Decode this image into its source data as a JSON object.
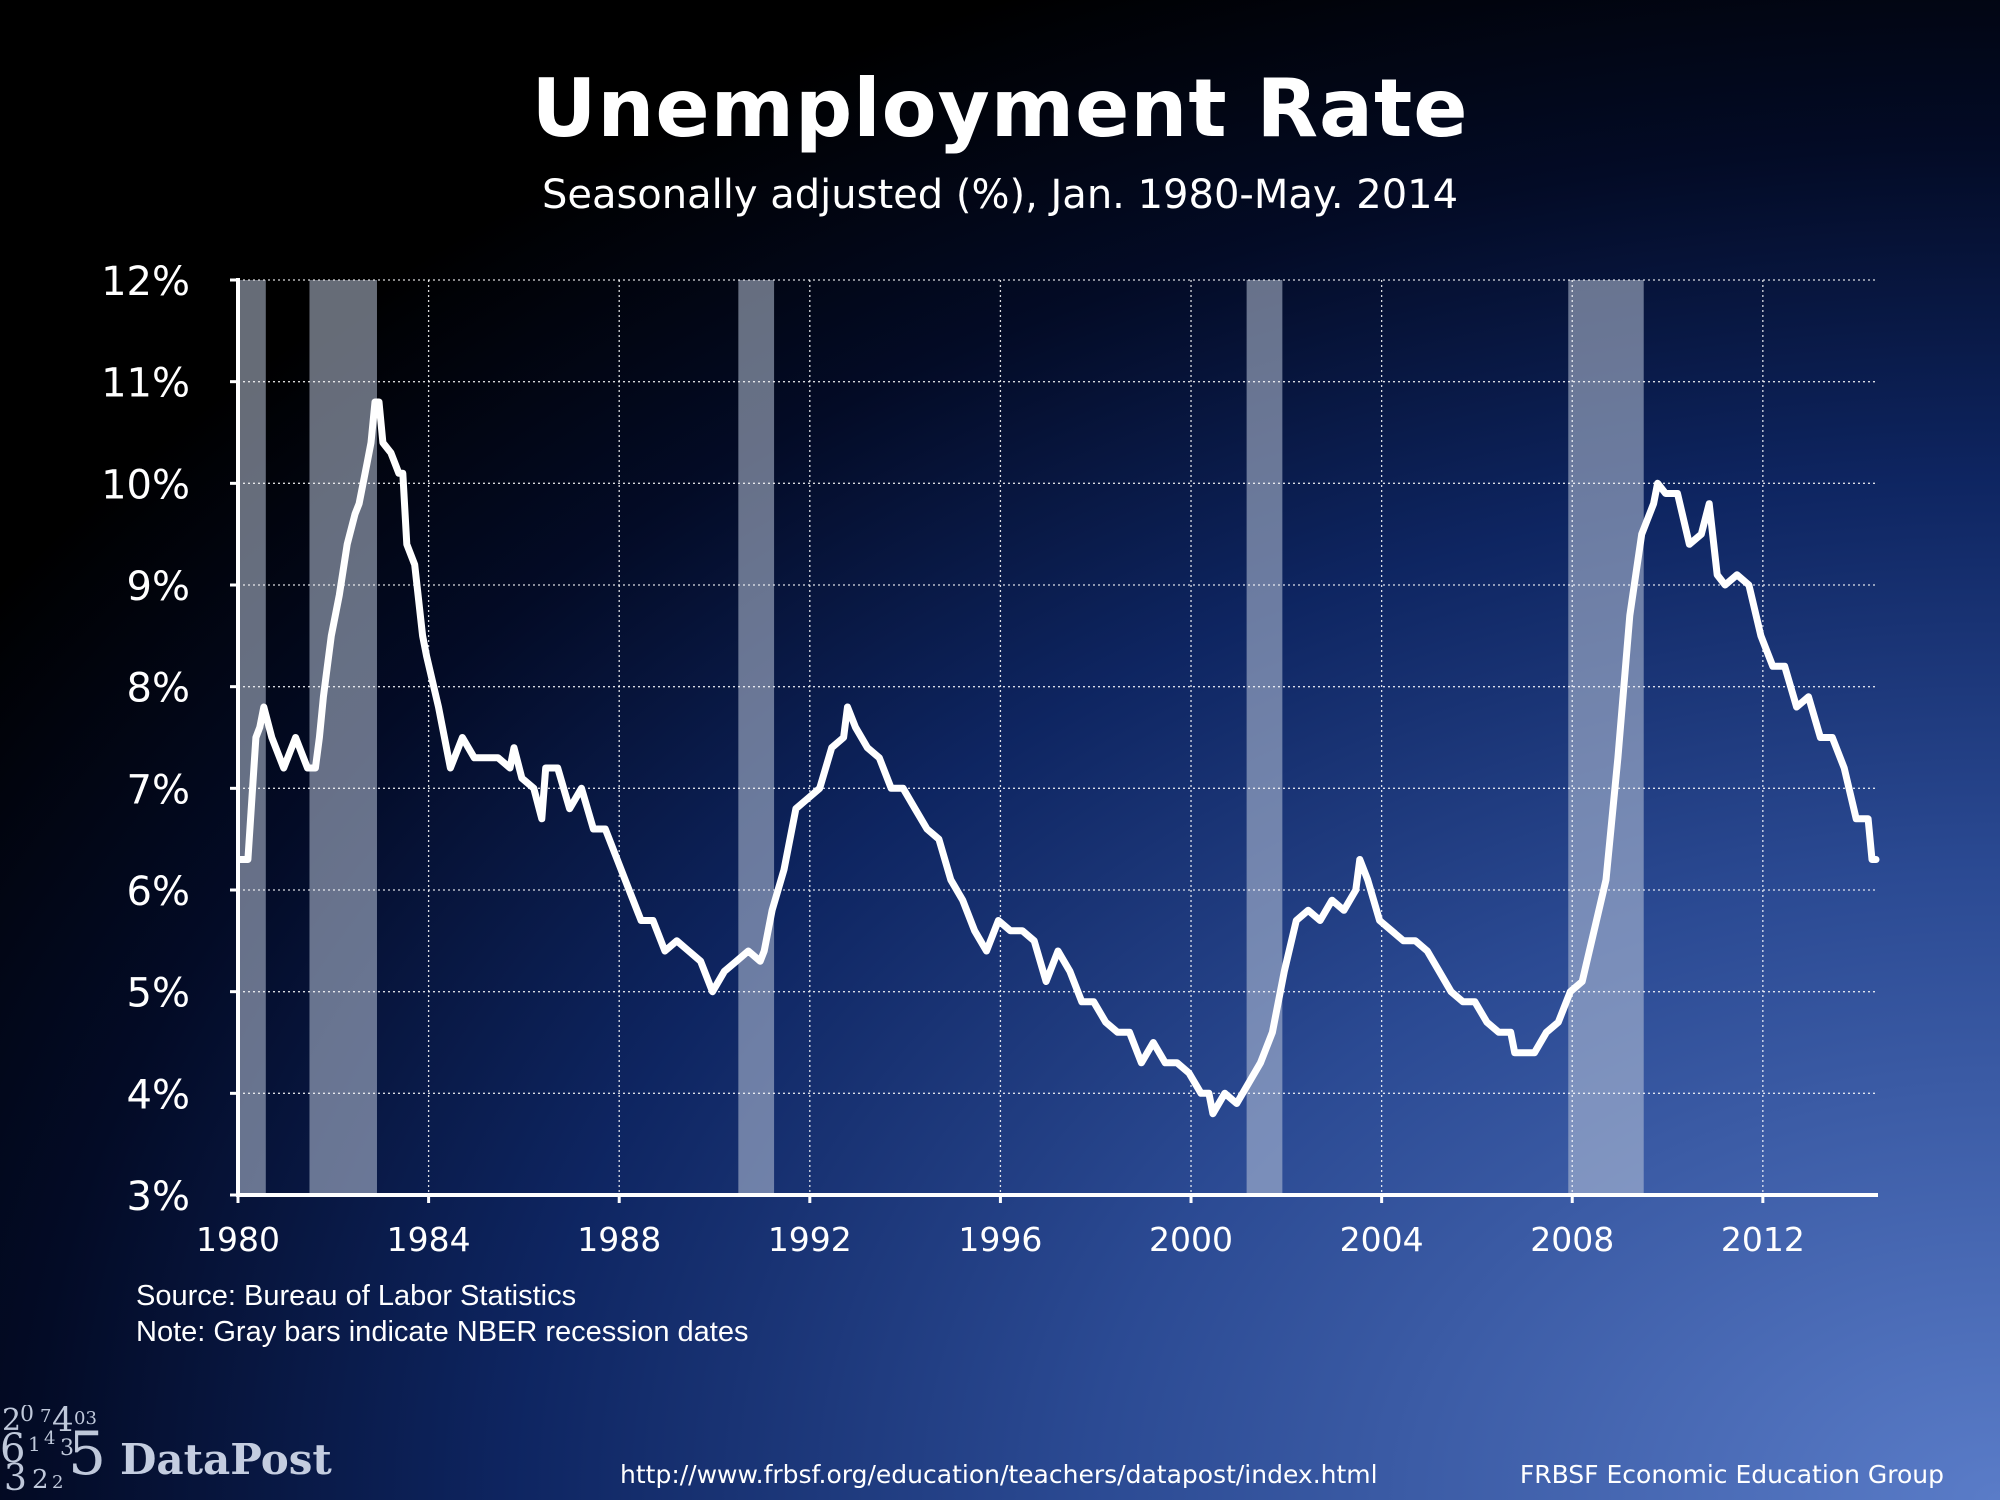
{
  "chart_data": {
    "type": "line",
    "title": "Unemployment Rate",
    "subtitle": "Seasonally adjusted (%), Jan. 1980-May. 2014",
    "y_ticks": [
      "3%",
      "4%",
      "5%",
      "6%",
      "7%",
      "8%",
      "9%",
      "10%",
      "11%",
      "12%"
    ],
    "x_ticks": [
      "1980",
      "1984",
      "1988",
      "1992",
      "1996",
      "2000",
      "2004",
      "2008",
      "2012"
    ],
    "xlim": [
      "1980-01",
      "2014-05"
    ],
    "ylim": [
      3,
      12
    ],
    "grid": true,
    "line_color": "#ffffff",
    "recession_color": "#b9c4d8",
    "recessions": [
      {
        "start": "1980-01",
        "end": "1980-07"
      },
      {
        "start": "1981-07",
        "end": "1982-11"
      },
      {
        "start": "1990-07",
        "end": "1991-03"
      },
      {
        "start": "2001-03",
        "end": "2001-11"
      },
      {
        "start": "2007-12",
        "end": "2009-06"
      }
    ],
    "series": [
      {
        "values": [
          [
            "1980-01",
            6.3
          ],
          [
            "1980-03",
            6.3
          ],
          [
            "1980-04",
            6.9
          ],
          [
            "1980-05",
            7.5
          ],
          [
            "1980-06",
            7.6
          ],
          [
            "1980-07",
            7.8
          ],
          [
            "1980-09",
            7.5
          ],
          [
            "1980-12",
            7.2
          ],
          [
            "1981-03",
            7.5
          ],
          [
            "1981-06",
            7.2
          ],
          [
            "1981-08",
            7.2
          ],
          [
            "1981-09",
            7.5
          ],
          [
            "1981-10",
            7.9
          ],
          [
            "1981-12",
            8.5
          ],
          [
            "1982-02",
            8.9
          ],
          [
            "1982-04",
            9.4
          ],
          [
            "1982-06",
            9.7
          ],
          [
            "1982-07",
            9.8
          ],
          [
            "1982-09",
            10.2
          ],
          [
            "1982-10",
            10.4
          ],
          [
            "1982-11",
            10.8
          ],
          [
            "1982-12",
            10.8
          ],
          [
            "1983-01",
            10.4
          ],
          [
            "1983-03",
            10.3
          ],
          [
            "1983-05",
            10.1
          ],
          [
            "1983-06",
            10.1
          ],
          [
            "1983-07",
            9.4
          ],
          [
            "1983-09",
            9.2
          ],
          [
            "1983-11",
            8.5
          ],
          [
            "1983-12",
            8.3
          ],
          [
            "1984-03",
            7.8
          ],
          [
            "1984-06",
            7.2
          ],
          [
            "1984-09",
            7.5
          ],
          [
            "1984-12",
            7.3
          ],
          [
            "1985-03",
            7.3
          ],
          [
            "1985-06",
            7.3
          ],
          [
            "1985-09",
            7.2
          ],
          [
            "1985-10",
            7.4
          ],
          [
            "1985-12",
            7.1
          ],
          [
            "1986-03",
            7.0
          ],
          [
            "1986-05",
            6.7
          ],
          [
            "1986-06",
            7.2
          ],
          [
            "1986-09",
            7.2
          ],
          [
            "1986-12",
            6.8
          ],
          [
            "1987-03",
            7.0
          ],
          [
            "1987-06",
            6.6
          ],
          [
            "1987-09",
            6.6
          ],
          [
            "1987-12",
            6.3
          ],
          [
            "1988-03",
            6.0
          ],
          [
            "1988-06",
            5.7
          ],
          [
            "1988-09",
            5.7
          ],
          [
            "1988-12",
            5.4
          ],
          [
            "1989-03",
            5.5
          ],
          [
            "1989-06",
            5.4
          ],
          [
            "1989-09",
            5.3
          ],
          [
            "1989-12",
            5.0
          ],
          [
            "1990-03",
            5.2
          ],
          [
            "1990-06",
            5.3
          ],
          [
            "1990-09",
            5.4
          ],
          [
            "1990-12",
            5.3
          ],
          [
            "1991-01",
            5.4
          ],
          [
            "1991-03",
            5.8
          ],
          [
            "1991-06",
            6.2
          ],
          [
            "1991-09",
            6.8
          ],
          [
            "1991-12",
            6.9
          ],
          [
            "1992-03",
            7.0
          ],
          [
            "1992-06",
            7.4
          ],
          [
            "1992-09",
            7.5
          ],
          [
            "1992-10",
            7.8
          ],
          [
            "1992-12",
            7.6
          ],
          [
            "1993-03",
            7.4
          ],
          [
            "1993-06",
            7.3
          ],
          [
            "1993-09",
            7.0
          ],
          [
            "1993-12",
            7.0
          ],
          [
            "1994-03",
            6.8
          ],
          [
            "1994-06",
            6.6
          ],
          [
            "1994-09",
            6.5
          ],
          [
            "1994-12",
            6.1
          ],
          [
            "1995-03",
            5.9
          ],
          [
            "1995-06",
            5.6
          ],
          [
            "1995-09",
            5.4
          ],
          [
            "1995-12",
            5.7
          ],
          [
            "1996-03",
            5.6
          ],
          [
            "1996-06",
            5.6
          ],
          [
            "1996-09",
            5.5
          ],
          [
            "1996-12",
            5.1
          ],
          [
            "1997-03",
            5.4
          ],
          [
            "1997-06",
            5.2
          ],
          [
            "1997-09",
            4.9
          ],
          [
            "1997-12",
            4.9
          ],
          [
            "1998-03",
            4.7
          ],
          [
            "1998-06",
            4.6
          ],
          [
            "1998-09",
            4.6
          ],
          [
            "1998-12",
            4.3
          ],
          [
            "1999-03",
            4.5
          ],
          [
            "1999-06",
            4.3
          ],
          [
            "1999-09",
            4.3
          ],
          [
            "1999-12",
            4.2
          ],
          [
            "2000-03",
            4.0
          ],
          [
            "2000-05",
            4.0
          ],
          [
            "2000-06",
            3.8
          ],
          [
            "2000-09",
            4.0
          ],
          [
            "2000-12",
            3.9
          ],
          [
            "2001-03",
            4.1
          ],
          [
            "2001-06",
            4.3
          ],
          [
            "2001-09",
            4.6
          ],
          [
            "2001-12",
            5.2
          ],
          [
            "2002-03",
            5.7
          ],
          [
            "2002-06",
            5.8
          ],
          [
            "2002-09",
            5.7
          ],
          [
            "2002-12",
            5.9
          ],
          [
            "2003-03",
            5.8
          ],
          [
            "2003-06",
            6.0
          ],
          [
            "2003-07",
            6.3
          ],
          [
            "2003-09",
            6.1
          ],
          [
            "2003-12",
            5.7
          ],
          [
            "2004-03",
            5.6
          ],
          [
            "2004-06",
            5.5
          ],
          [
            "2004-09",
            5.5
          ],
          [
            "2004-12",
            5.4
          ],
          [
            "2005-03",
            5.2
          ],
          [
            "2005-06",
            5.0
          ],
          [
            "2005-09",
            4.9
          ],
          [
            "2005-12",
            4.9
          ],
          [
            "2006-03",
            4.7
          ],
          [
            "2006-06",
            4.6
          ],
          [
            "2006-09",
            4.6
          ],
          [
            "2006-10",
            4.4
          ],
          [
            "2006-12",
            4.4
          ],
          [
            "2007-03",
            4.4
          ],
          [
            "2007-06",
            4.6
          ],
          [
            "2007-09",
            4.7
          ],
          [
            "2007-12",
            5.0
          ],
          [
            "2008-03",
            5.1
          ],
          [
            "2008-06",
            5.6
          ],
          [
            "2008-09",
            6.1
          ],
          [
            "2008-12",
            7.3
          ],
          [
            "2009-03",
            8.7
          ],
          [
            "2009-06",
            9.5
          ],
          [
            "2009-09",
            9.8
          ],
          [
            "2009-10",
            10.0
          ],
          [
            "2009-12",
            9.9
          ],
          [
            "2010-03",
            9.9
          ],
          [
            "2010-06",
            9.4
          ],
          [
            "2010-09",
            9.5
          ],
          [
            "2010-11",
            9.8
          ],
          [
            "2011-01",
            9.1
          ],
          [
            "2011-03",
            9.0
          ],
          [
            "2011-06",
            9.1
          ],
          [
            "2011-09",
            9.0
          ],
          [
            "2011-12",
            8.5
          ],
          [
            "2012-03",
            8.2
          ],
          [
            "2012-06",
            8.2
          ],
          [
            "2012-09",
            7.8
          ],
          [
            "2012-12",
            7.9
          ],
          [
            "2013-03",
            7.5
          ],
          [
            "2013-06",
            7.5
          ],
          [
            "2013-09",
            7.2
          ],
          [
            "2013-12",
            6.7
          ],
          [
            "2014-03",
            6.7
          ],
          [
            "2014-04",
            6.3
          ],
          [
            "2014-05",
            6.3
          ]
        ]
      }
    ]
  },
  "notes": {
    "source": "Source: Bureau of Labor Statistics",
    "note": "Note: Gray bars indicate NBER recession dates"
  },
  "footer": {
    "logo_text": "DataPost",
    "logo_digits": [
      "2",
      "0",
      "7",
      "4",
      "03",
      "6",
      "1",
      "4",
      "3",
      "5",
      "3",
      "2",
      "2"
    ],
    "url": "http://www.frbsf.org/education/teachers/datapost/index.html",
    "org": "FRBSF Economic Education Group"
  }
}
